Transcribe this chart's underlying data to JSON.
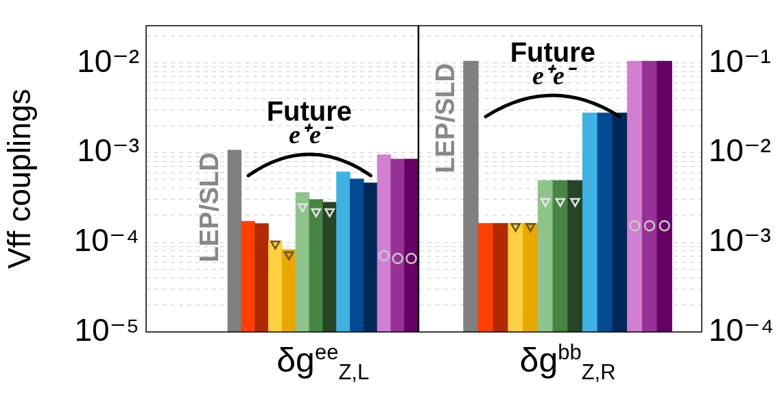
{
  "chart_data": [
    {
      "type": "bar",
      "ylabel": "Vff couplings",
      "xlabel": "δg$^{ee}$$_{Z,L}$",
      "annotations": [
        "LEP/SLD",
        "Future",
        "e⁺e⁻"
      ],
      "log": true,
      "grid": true,
      "ylim": [
        1e-05,
        0.026
      ],
      "yticks": [
        {
          "value": 1e-05,
          "label": "10⁻⁵"
        },
        {
          "value": 2e-05,
          "label": null
        },
        {
          "value": 3e-05,
          "label": null
        },
        {
          "value": 4e-05,
          "label": null
        },
        {
          "value": 5e-05,
          "label": null
        },
        {
          "value": 6e-05,
          "label": null
        },
        {
          "value": 7e-05,
          "label": null
        },
        {
          "value": 8e-05,
          "label": null
        },
        {
          "value": 9e-05,
          "label": null
        },
        {
          "value": 0.0001,
          "label": "10⁻⁴"
        },
        {
          "value": 0.0002,
          "label": null
        },
        {
          "value": 0.0003,
          "label": null
        },
        {
          "value": 0.0004,
          "label": null
        },
        {
          "value": 0.0005,
          "label": null
        },
        {
          "value": 0.0006,
          "label": null
        },
        {
          "value": 0.0007,
          "label": null
        },
        {
          "value": 0.0008,
          "label": null
        },
        {
          "value": 0.0009,
          "label": null
        },
        {
          "value": 0.001,
          "label": "10⁻³"
        },
        {
          "value": 0.002,
          "label": null
        },
        {
          "value": 0.003,
          "label": null
        },
        {
          "value": 0.004,
          "label": null
        },
        {
          "value": 0.005,
          "label": null
        },
        {
          "value": 0.006,
          "label": null
        },
        {
          "value": 0.007,
          "label": null
        },
        {
          "value": 0.008,
          "label": null
        },
        {
          "value": 0.009,
          "label": null
        },
        {
          "value": 0.01,
          "label": "10⁻²"
        },
        {
          "value": 0.02,
          "label": null
        }
      ],
      "categories": [
        null,
        null,
        null,
        null,
        null,
        null,
        null,
        null,
        null,
        null,
        null,
        null,
        null,
        null,
        null,
        null,
        null,
        null,
        null,
        null
      ],
      "series": [
        {
          "values": [
            null,
            null,
            null,
            null,
            null,
            null,
            0.00107,
            0.000172,
            0.000162,
            0.000103,
            8.3e-05,
            0.00036,
            0.0003,
            0.00028,
            0.00061,
            0.00051,
            0.00046,
            0.00095,
            0.00085,
            0.00085
          ],
          "colors": [
            null,
            null,
            null,
            null,
            null,
            null,
            "#808080",
            "#ff4000",
            "#b02a00",
            "#fdd042",
            "#e8a800",
            "#90c38c",
            "#478545",
            "#264526",
            "#3fb1e3",
            "#004b93",
            "#00285a",
            "#d17fd1",
            "#963296",
            "#660066"
          ]
        },
        {
          "type": "scatter",
          "marker": "triangle",
          "color": "#6b5410",
          "values": [
            null,
            null,
            null,
            null,
            null,
            null,
            null,
            null,
            null,
            9.6e-05,
            7.3e-05,
            null,
            null,
            null,
            null,
            null,
            null,
            null,
            null,
            null
          ]
        },
        {
          "type": "scatter",
          "marker": "triangle",
          "color": "#e6e6e6",
          "values": [
            null,
            null,
            null,
            null,
            null,
            null,
            null,
            null,
            null,
            null,
            null,
            0.00025,
            0.00022,
            0.00022,
            null,
            null,
            null,
            null,
            null,
            null
          ]
        },
        {
          "type": "scatter",
          "marker": "circle",
          "color": "#c8c8c8",
          "values": [
            null,
            null,
            null,
            null,
            null,
            null,
            null,
            null,
            null,
            null,
            null,
            null,
            null,
            null,
            null,
            null,
            null,
            7.1e-05,
            6.6e-05,
            6.6e-05
          ]
        }
      ]
    },
    {
      "type": "bar",
      "xlabel": "δg$^{bb}$$_{Z,R}$",
      "annotations": [
        "LEP/SLD",
        "Future",
        "e⁺e⁻"
      ],
      "log": "y2",
      "grid": true,
      "y2lim": [
        0.0001,
        0.26
      ],
      "y2ticks": [
        {
          "value": 0.0001,
          "label": "10⁻⁴"
        },
        {
          "value": 0.0002,
          "label": null
        },
        {
          "value": 0.0003,
          "label": null
        },
        {
          "value": 0.0004,
          "label": null
        },
        {
          "value": 0.0005,
          "label": null
        },
        {
          "value": 0.0006,
          "label": null
        },
        {
          "value": 0.0007,
          "label": null
        },
        {
          "value": 0.0008,
          "label": null
        },
        {
          "value": 0.0009,
          "label": null
        },
        {
          "value": 0.001,
          "label": "10⁻³"
        },
        {
          "value": 0.002,
          "label": null
        },
        {
          "value": 0.003,
          "label": null
        },
        {
          "value": 0.004,
          "label": null
        },
        {
          "value": 0.005,
          "label": null
        },
        {
          "value": 0.006,
          "label": null
        },
        {
          "value": 0.007,
          "label": null
        },
        {
          "value": 0.008,
          "label": null
        },
        {
          "value": 0.009,
          "label": null
        },
        {
          "value": 0.01,
          "label": "10⁻²"
        },
        {
          "value": 0.02,
          "label": null
        },
        {
          "value": 0.03,
          "label": null
        },
        {
          "value": 0.04,
          "label": null
        },
        {
          "value": 0.05,
          "label": null
        },
        {
          "value": 0.06,
          "label": null
        },
        {
          "value": 0.07,
          "label": null
        },
        {
          "value": 0.08,
          "label": null
        },
        {
          "value": 0.09,
          "label": null
        },
        {
          "value": 0.1,
          "label": "10⁻¹"
        },
        {
          "value": 0.2,
          "label": null
        }
      ],
      "categories": [
        null,
        null,
        null,
        null,
        null,
        null,
        null,
        null,
        null,
        null,
        null,
        null,
        null,
        null,
        null,
        null,
        null,
        null,
        null
      ],
      "series": [
        {
          "axis": "y2",
          "values": [
            null,
            null,
            null,
            0.105,
            0.00163,
            0.00163,
            0.00163,
            0.00163,
            0.0049,
            0.0049,
            0.0049,
            0.0278,
            0.0278,
            0.0278,
            0.105,
            0.105,
            0.105,
            null,
            null
          ],
          "colors": [
            null,
            null,
            null,
            "#808080",
            "#ff4000",
            "#b02a00",
            "#fdd042",
            "#e8a800",
            "#90c38c",
            "#478545",
            "#264526",
            "#3fb1e3",
            "#004b93",
            "#00285a",
            "#d17fd1",
            "#963296",
            "#660066",
            null,
            null
          ]
        },
        {
          "type": "scatter",
          "axis": "y2",
          "marker": "triangle",
          "color": "#6b5410",
          "values": [
            null,
            null,
            null,
            null,
            null,
            null,
            0.00151,
            0.00151,
            null,
            null,
            null,
            null,
            null,
            null,
            null,
            null,
            null,
            null,
            null
          ]
        },
        {
          "type": "scatter",
          "axis": "y2",
          "marker": "triangle",
          "color": "#e6e6e6",
          "values": [
            null,
            null,
            null,
            null,
            null,
            null,
            null,
            null,
            0.00287,
            0.00287,
            0.00287,
            null,
            null,
            null,
            null,
            null,
            null,
            null,
            null
          ]
        },
        {
          "type": "scatter",
          "axis": "y2",
          "marker": "circle",
          "color": "#c8c8c8",
          "values": [
            null,
            null,
            null,
            null,
            null,
            null,
            null,
            null,
            null,
            null,
            null,
            null,
            null,
            null,
            0.00153,
            0.00153,
            0.00153,
            null,
            null
          ]
        }
      ]
    }
  ]
}
